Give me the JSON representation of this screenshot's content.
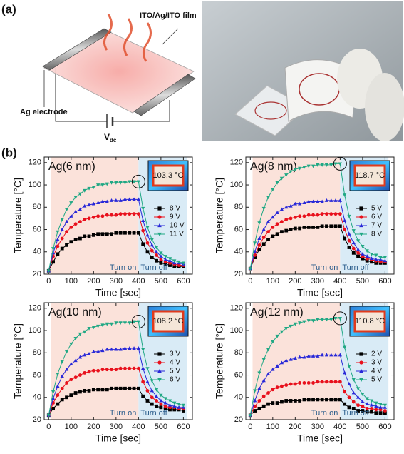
{
  "panel_a": {
    "label": "(a)",
    "film_label": "ITO/Ag/ITO film",
    "electrode_label": "Ag electrode",
    "voltage": "V",
    "voltage_sub": "dc"
  },
  "panel_b_label": "(b)",
  "chart_data": [
    {
      "type": "line",
      "title": "Ag(6 nm)",
      "x_label": "Time [sec]",
      "y_label": "Temperature [°C]",
      "x": [
        0,
        20,
        40,
        60,
        80,
        100,
        120,
        140,
        160,
        180,
        200,
        220,
        240,
        260,
        280,
        300,
        320,
        340,
        360,
        380,
        400,
        420,
        440,
        460,
        480,
        500,
        520,
        540,
        560,
        580,
        600
      ],
      "series": [
        {
          "name": "8 V",
          "color": "#000000",
          "marker": "square",
          "values": [
            23,
            31,
            38,
            43,
            46,
            49,
            51,
            52,
            54,
            54,
            55,
            56,
            56,
            56,
            56,
            57,
            57,
            57,
            57,
            57,
            57,
            47,
            40,
            35,
            32,
            30,
            29,
            28,
            27,
            27,
            27
          ]
        },
        {
          "name": "9 V",
          "color": "#e8101c",
          "marker": "circle",
          "values": [
            23,
            36,
            45,
            52,
            58,
            62,
            65,
            67,
            69,
            70,
            71,
            72,
            72,
            73,
            73,
            73,
            74,
            74,
            74,
            74,
            74,
            59,
            48,
            41,
            37,
            33,
            31,
            30,
            29,
            28,
            28
          ]
        },
        {
          "name": "10 V",
          "color": "#2828d8",
          "marker": "triangle-up",
          "values": [
            23,
            39,
            51,
            60,
            67,
            72,
            76,
            78,
            81,
            82,
            83,
            84,
            85,
            85,
            86,
            86,
            86,
            87,
            87,
            87,
            87,
            68,
            55,
            46,
            40,
            36,
            33,
            32,
            30,
            30,
            29
          ]
        },
        {
          "name": "11 V",
          "color": "#20a884",
          "marker": "triangle-down",
          "values": [
            23,
            43,
            58,
            69,
            78,
            84,
            89,
            92,
            95,
            97,
            98,
            100,
            100,
            101,
            102,
            102,
            102,
            102,
            103,
            103,
            103,
            79,
            62,
            51,
            44,
            39,
            36,
            34,
            32,
            31,
            30
          ]
        }
      ],
      "xlim": [
        -20,
        640
      ],
      "ylim": [
        20,
        125
      ],
      "xticks": [
        0,
        100,
        200,
        300,
        400,
        500,
        600
      ],
      "yticks": [
        20,
        40,
        60,
        80,
        100,
        120
      ],
      "legend": "right",
      "inset_label": "103.3 °C",
      "annotations": [
        "Turn on",
        "Turn off"
      ],
      "shading": [
        {
          "xlim": [
            10,
            400
          ],
          "color": "#fbe2da"
        },
        {
          "xlim": [
            400,
            615
          ],
          "color": "#d9ebf6"
        }
      ]
    },
    {
      "type": "line",
      "title": "Ag(8 nm)",
      "x_label": "Time [sec]",
      "y_label": "Temperature [°C]",
      "x": [
        0,
        20,
        40,
        60,
        80,
        100,
        120,
        140,
        160,
        180,
        200,
        220,
        240,
        260,
        280,
        300,
        320,
        340,
        360,
        380,
        400,
        420,
        440,
        460,
        480,
        500,
        520,
        540,
        560,
        580,
        600
      ],
      "series": [
        {
          "name": "5 V",
          "color": "#000000",
          "marker": "square",
          "values": [
            25,
            35,
            42,
            47,
            51,
            54,
            56,
            58,
            59,
            60,
            61,
            61,
            62,
            62,
            62,
            62,
            63,
            63,
            63,
            63,
            63,
            52,
            44,
            39,
            36,
            34,
            32,
            31,
            30,
            30,
            30
          ]
        },
        {
          "name": "6 V",
          "color": "#e8101c",
          "marker": "circle",
          "values": [
            25,
            37,
            46,
            53,
            58,
            62,
            65,
            67,
            69,
            70,
            71,
            72,
            72,
            73,
            73,
            73,
            74,
            74,
            74,
            74,
            74,
            60,
            50,
            43,
            39,
            36,
            34,
            33,
            32,
            31,
            31
          ]
        },
        {
          "name": "7 V",
          "color": "#2828d8",
          "marker": "triangle-up",
          "values": [
            25,
            40,
            52,
            60,
            67,
            71,
            75,
            78,
            80,
            81,
            83,
            83,
            84,
            85,
            85,
            85,
            85,
            86,
            86,
            86,
            86,
            68,
            56,
            48,
            42,
            38,
            36,
            34,
            33,
            33,
            32
          ]
        },
        {
          "name": "8 V",
          "color": "#20a884",
          "marker": "triangle-down",
          "values": [
            25,
            48,
            66,
            79,
            89,
            96,
            102,
            106,
            109,
            112,
            114,
            115,
            116,
            117,
            117,
            118,
            118,
            118,
            118,
            119,
            119,
            91,
            72,
            59,
            50,
            45,
            41,
            38,
            37,
            35,
            35
          ]
        }
      ],
      "xlim": [
        -20,
        640
      ],
      "ylim": [
        20,
        125
      ],
      "xticks": [
        0,
        100,
        200,
        300,
        400,
        500,
        600
      ],
      "yticks": [
        20,
        40,
        60,
        80,
        100,
        120
      ],
      "legend": "right",
      "inset_label": "118.7 °C",
      "annotations": [
        "Turn on",
        "Turn off"
      ],
      "shading": [
        {
          "xlim": [
            10,
            400
          ],
          "color": "#fbe2da"
        },
        {
          "xlim": [
            400,
            615
          ],
          "color": "#d9ebf6"
        }
      ]
    },
    {
      "type": "line",
      "title": "Ag(10 nm)",
      "x_label": "Time [sec]",
      "y_label": "Temperature [°C]",
      "x": [
        0,
        20,
        40,
        60,
        80,
        100,
        120,
        140,
        160,
        180,
        200,
        220,
        240,
        260,
        280,
        300,
        320,
        340,
        360,
        380,
        400,
        420,
        440,
        460,
        480,
        500,
        520,
        540,
        560,
        580,
        600
      ],
      "series": [
        {
          "name": "3 V",
          "color": "#000000",
          "marker": "square",
          "values": [
            24,
            30,
            34,
            38,
            40,
            42,
            44,
            45,
            46,
            46,
            47,
            47,
            47,
            47,
            48,
            48,
            48,
            48,
            48,
            48,
            48,
            41,
            37,
            34,
            32,
            31,
            30,
            29,
            29,
            29,
            28
          ]
        },
        {
          "name": "4 V",
          "color": "#e8101c",
          "marker": "circle",
          "values": [
            24,
            35,
            42,
            48,
            53,
            56,
            58,
            60,
            62,
            63,
            64,
            64,
            65,
            65,
            65,
            65,
            66,
            66,
            66,
            66,
            66,
            54,
            46,
            40,
            37,
            34,
            32,
            31,
            31,
            30,
            30
          ]
        },
        {
          "name": "5 V",
          "color": "#2828d8",
          "marker": "triangle-up",
          "values": [
            24,
            39,
            50,
            59,
            65,
            70,
            73,
            76,
            78,
            79,
            81,
            81,
            82,
            83,
            83,
            83,
            83,
            84,
            84,
            84,
            84,
            66,
            54,
            46,
            41,
            37,
            35,
            33,
            32,
            31,
            31
          ]
        },
        {
          "name": "6 V",
          "color": "#20a884",
          "marker": "triangle-down",
          "values": [
            24,
            45,
            61,
            72,
            81,
            88,
            93,
            97,
            99,
            102,
            103,
            104,
            105,
            106,
            106,
            107,
            107,
            107,
            107,
            108,
            108,
            83,
            66,
            55,
            47,
            42,
            39,
            37,
            35,
            34,
            33
          ]
        }
      ],
      "xlim": [
        -20,
        640
      ],
      "ylim": [
        20,
        125
      ],
      "xticks": [
        0,
        100,
        200,
        300,
        400,
        500,
        600
      ],
      "yticks": [
        20,
        40,
        60,
        80,
        100,
        120
      ],
      "legend": "right",
      "inset_label": "108.2 °C",
      "annotations": [
        "Turn on",
        "Turn off"
      ],
      "shading": [
        {
          "xlim": [
            10,
            400
          ],
          "color": "#fbe2da"
        },
        {
          "xlim": [
            400,
            615
          ],
          "color": "#d9ebf6"
        }
      ]
    },
    {
      "type": "line",
      "title": "Ag(12 nm)",
      "x_label": "Time [sec]",
      "y_label": "Temperature [°C]",
      "x": [
        0,
        20,
        40,
        60,
        80,
        100,
        120,
        140,
        160,
        180,
        200,
        220,
        240,
        260,
        280,
        300,
        320,
        340,
        360,
        380,
        400,
        420,
        440,
        460,
        480,
        500,
        520,
        540,
        560,
        580,
        600
      ],
      "series": [
        {
          "name": "2 V",
          "color": "#000000",
          "marker": "square",
          "values": [
            24,
            28,
            30,
            32,
            34,
            35,
            35,
            36,
            37,
            37,
            37,
            37,
            38,
            38,
            38,
            38,
            38,
            38,
            38,
            38,
            38,
            34,
            31,
            30,
            28,
            28,
            27,
            27,
            26,
            26,
            26
          ]
        },
        {
          "name": "3 V",
          "color": "#e8101c",
          "marker": "circle",
          "values": [
            24,
            32,
            37,
            41,
            44,
            47,
            49,
            50,
            51,
            52,
            52,
            53,
            53,
            53,
            53,
            54,
            54,
            54,
            54,
            54,
            54,
            45,
            40,
            36,
            33,
            32,
            30,
            30,
            29,
            29,
            28
          ]
        },
        {
          "name": "4 V",
          "color": "#2828d8",
          "marker": "triangle-up",
          "values": [
            24,
            37,
            48,
            55,
            61,
            65,
            68,
            71,
            73,
            74,
            75,
            76,
            76,
            77,
            77,
            77,
            78,
            78,
            78,
            78,
            78,
            62,
            52,
            44,
            40,
            36,
            34,
            33,
            32,
            31,
            31
          ]
        },
        {
          "name": "5 V",
          "color": "#20a884",
          "marker": "triangle-down",
          "values": [
            24,
            46,
            62,
            74,
            83,
            90,
            95,
            99,
            102,
            104,
            106,
            107,
            108,
            109,
            109,
            110,
            110,
            110,
            110,
            111,
            111,
            85,
            68,
            56,
            48,
            43,
            39,
            37,
            35,
            34,
            33
          ]
        }
      ],
      "xlim": [
        -20,
        640
      ],
      "ylim": [
        20,
        125
      ],
      "xticks": [
        0,
        100,
        200,
        300,
        400,
        500,
        600
      ],
      "yticks": [
        20,
        40,
        60,
        80,
        100,
        120
      ],
      "legend": "right",
      "inset_label": "110.8 °C",
      "annotations": [
        "Turn on",
        "Turn off"
      ],
      "shading": [
        {
          "xlim": [
            10,
            400
          ],
          "color": "#fbe2da"
        },
        {
          "xlim": [
            400,
            615
          ],
          "color": "#d9ebf6"
        }
      ]
    }
  ]
}
